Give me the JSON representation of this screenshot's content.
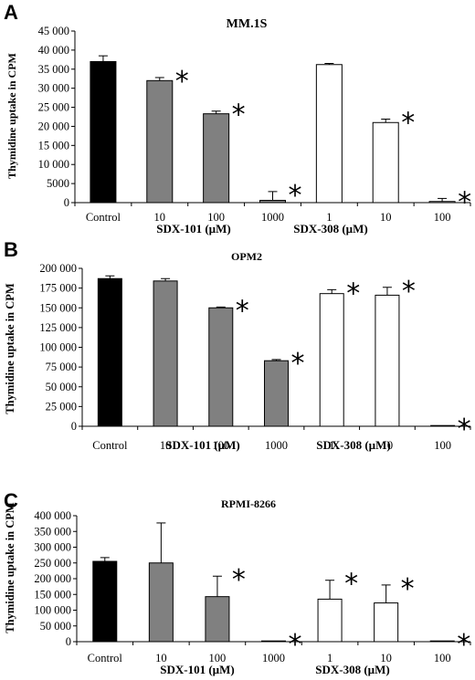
{
  "figure": {
    "colors": {
      "control": "#000000",
      "sdx101": "#808080",
      "sdx308": "#ffffff",
      "axis": "#000000"
    },
    "categories": [
      "Control",
      "10",
      "100",
      "1000",
      "1",
      "10",
      "100"
    ],
    "group_labels": [
      "SDX-101 (µM)",
      "SDX-308 (µM)"
    ]
  },
  "chart_data": [
    {
      "type": "bar",
      "panel_label": "A",
      "title": "MM.1S",
      "ylabel": "Thymidine uptake in CPM",
      "ylim": [
        0,
        45000
      ],
      "yticks": [
        0,
        5000,
        10000,
        15000,
        20000,
        25000,
        30000,
        35000,
        40000,
        45000
      ],
      "ytick_labels": [
        "0",
        "5000",
        "10 000",
        "15 000",
        "20 000",
        "25 000",
        "30 000",
        "35 000",
        "40 000",
        "45 000"
      ],
      "categories": [
        "Control",
        "10",
        "100",
        "1000",
        "1",
        "10",
        "100"
      ],
      "values": [
        37000,
        32000,
        23300,
        600,
        36200,
        21000,
        300
      ],
      "errors": [
        1500,
        800,
        700,
        2300,
        300,
        900,
        800
      ],
      "significant": [
        false,
        true,
        true,
        true,
        false,
        true,
        true
      ]
    },
    {
      "type": "bar",
      "panel_label": "B",
      "title": "OPM2",
      "ylabel": "Thymidine uptake in CPM",
      "ylim": [
        0,
        200000
      ],
      "yticks": [
        0,
        25000,
        50000,
        75000,
        100000,
        125000,
        150000,
        175000,
        200000
      ],
      "ytick_labels": [
        "0",
        "25 000",
        "50 000",
        "75 000",
        "100 000",
        "125 000",
        "150 000",
        "175 000",
        "200 000"
      ],
      "categories": [
        "Control",
        "10",
        "100",
        "1000",
        "1",
        "10",
        "100"
      ],
      "values": [
        187000,
        184000,
        150000,
        83000,
        168000,
        166000,
        500
      ],
      "errors": [
        3500,
        3000,
        1000,
        1500,
        5000,
        10000,
        0
      ],
      "significant": [
        false,
        false,
        true,
        true,
        true,
        true,
        true
      ]
    },
    {
      "type": "bar",
      "panel_label": "C",
      "title": "RPMI-8266",
      "ylabel": "Thymidine uptake in CPM",
      "ylim": [
        0,
        400000
      ],
      "yticks": [
        0,
        50000,
        100000,
        150000,
        200000,
        250000,
        300000,
        350000,
        400000
      ],
      "ytick_labels": [
        "0",
        "50 000",
        "100 000",
        "150 000",
        "200 000",
        "250 000",
        "300 000",
        "350 000",
        "400 000"
      ],
      "categories": [
        "Control",
        "10",
        "100",
        "1000",
        "1",
        "10",
        "100"
      ],
      "values": [
        255000,
        250000,
        143000,
        0,
        135000,
        123000,
        0
      ],
      "errors": [
        12000,
        127000,
        65000,
        0,
        60000,
        57000,
        0
      ],
      "significant": [
        false,
        false,
        true,
        true,
        true,
        true,
        true
      ]
    }
  ]
}
